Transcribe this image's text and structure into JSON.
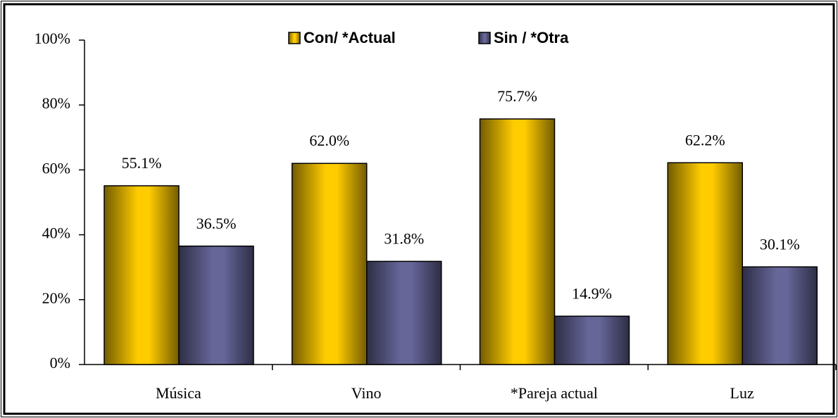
{
  "chart_data": {
    "type": "bar",
    "categories": [
      "Música",
      "Vino",
      "*Pareja actual",
      "Luz"
    ],
    "series": [
      {
        "name": "Con/ *Actual",
        "color": "#ffcc00",
        "values": [
          55.1,
          62.0,
          75.7,
          62.2
        ],
        "value_labels": [
          "55.1%",
          "62.0%",
          "75.7%",
          "62.2%"
        ]
      },
      {
        "name": "Sin / *Otra",
        "color": "#666699",
        "values": [
          36.5,
          31.8,
          14.9,
          30.1
        ],
        "value_labels": [
          "36.5%",
          "31.8%",
          "14.9%",
          "30.1%"
        ]
      }
    ],
    "ylim": [
      0,
      100
    ],
    "yticks": [
      {
        "value": 0,
        "label": "0%"
      },
      {
        "value": 20,
        "label": "20%"
      },
      {
        "value": 40,
        "label": "40%"
      },
      {
        "value": 60,
        "label": "60%"
      },
      {
        "value": 80,
        "label": "80%"
      },
      {
        "value": 100,
        "label": "100%"
      }
    ],
    "grid": false,
    "legend": "top"
  }
}
